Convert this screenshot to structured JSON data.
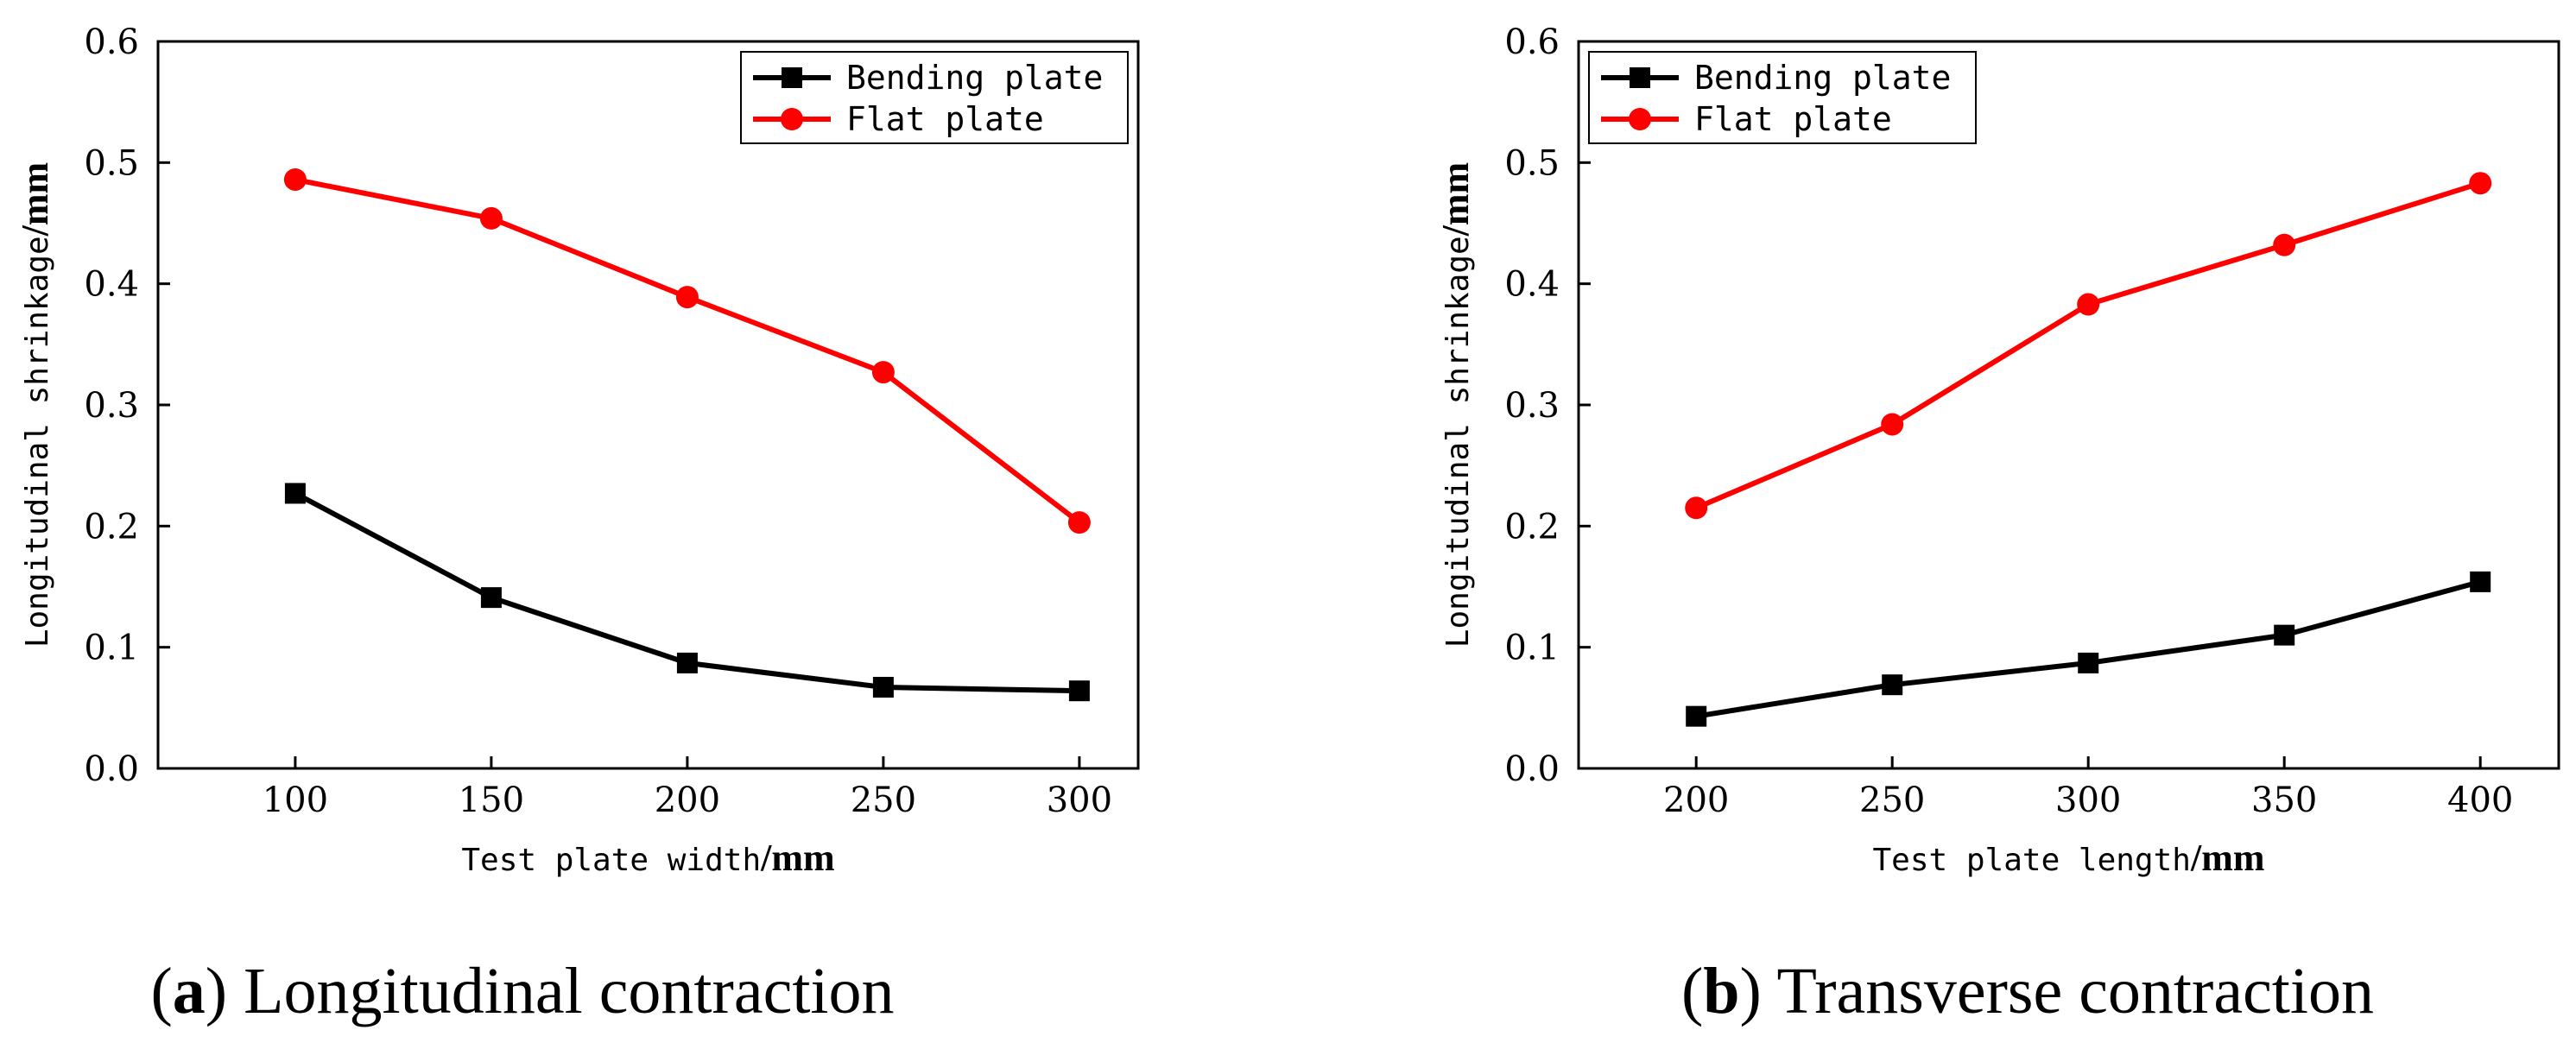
{
  "chart_data": [
    {
      "type": "line",
      "panel": "a",
      "x": [
        100,
        150,
        200,
        250,
        300
      ],
      "xticks": [
        "100",
        "150",
        "200",
        "250",
        "300"
      ],
      "xlim": [
        65,
        315
      ],
      "ylim": [
        0,
        0.6
      ],
      "yticks": [
        "0.0",
        "0.1",
        "0.2",
        "0.3",
        "0.4",
        "0.5",
        "0.6"
      ],
      "xlabel": "Test plate width",
      "xlabel_unit": "/mm",
      "ylabel": "Longitudinal shrinkage",
      "ylabel_unit": "/mm",
      "legend_position": "top-right",
      "series": [
        {
          "name": "Bending plate",
          "marker": "square",
          "color": "#000000",
          "values": [
            0.227,
            0.141,
            0.087,
            0.067,
            0.064
          ]
        },
        {
          "name": "Flat plate",
          "marker": "circle",
          "color": "#ff0000",
          "values": [
            0.486,
            0.454,
            0.389,
            0.327,
            0.203
          ]
        }
      ],
      "caption_letter": "a",
      "caption_text": "Longitudinal contraction"
    },
    {
      "type": "line",
      "panel": "b",
      "x": [
        200,
        250,
        300,
        350,
        400
      ],
      "xticks": [
        "200",
        "250",
        "300",
        "350",
        "400"
      ],
      "xlim": [
        170,
        420
      ],
      "ylim": [
        0,
        0.6
      ],
      "yticks": [
        "0.0",
        "0.1",
        "0.2",
        "0.3",
        "0.4",
        "0.5",
        "0.6"
      ],
      "xlabel": "Test plate length",
      "xlabel_unit": "/mm",
      "ylabel": "Longitudinal shrinkage",
      "ylabel_unit": "/mm",
      "legend_position": "top-left",
      "series": [
        {
          "name": "Bending plate",
          "marker": "square",
          "color": "#000000",
          "values": [
            0.043,
            0.069,
            0.087,
            0.11,
            0.154
          ]
        },
        {
          "name": "Flat plate",
          "marker": "circle",
          "color": "#ff0000",
          "values": [
            0.215,
            0.284,
            0.383,
            0.432,
            0.483
          ]
        }
      ],
      "caption_letter": "b",
      "caption_text": "Transverse contraction"
    }
  ]
}
